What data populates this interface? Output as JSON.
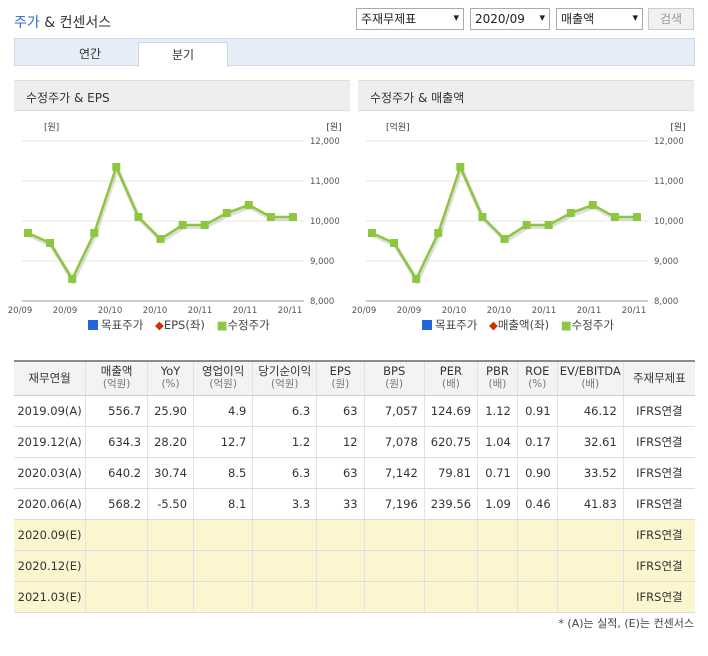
{
  "header": {
    "title_prefix": "주가",
    "title_rest": " & 컨센서스",
    "select_type": "주재무제표",
    "select_period": "2020/09",
    "select_metric": "매출액",
    "search_label": "검색"
  },
  "tabs": [
    "연간",
    "분기"
  ],
  "charts": [
    {
      "title": "수정주가 & EPS",
      "y_left_unit": "[원]",
      "y_right_unit": "[원]",
      "legend": [
        "목표주가",
        "EPS(좌)",
        "수정주가"
      ]
    },
    {
      "title": "수정주가 & 매출액",
      "y_left_unit": "[억원]",
      "y_right_unit": "[원]",
      "legend": [
        "목표주가",
        "매출액(좌)",
        "수정주가"
      ]
    }
  ],
  "chart_data": [
    {
      "type": "line",
      "title": "수정주가 & EPS",
      "x_ticks": [
        "20/09",
        "20/09",
        "20/10",
        "20/10",
        "20/11",
        "20/11",
        "20/11"
      ],
      "y_right_ticks": [
        "12,000",
        "11,000",
        "10,000",
        "9,000",
        "8,000"
      ],
      "ylim": [
        8000,
        12000
      ],
      "series": [
        {
          "name": "수정주가",
          "values": [
            9700,
            9450,
            8550,
            9700,
            11350,
            10100,
            9550,
            9900,
            9900,
            10200,
            10400,
            10100,
            10100
          ]
        }
      ]
    },
    {
      "type": "line",
      "title": "수정주가 & 매출액",
      "x_ticks": [
        "20/09",
        "20/09",
        "20/10",
        "20/10",
        "20/11",
        "20/11",
        "20/11"
      ],
      "y_right_ticks": [
        "12,000",
        "11,000",
        "10,000",
        "9,000",
        "8,000"
      ],
      "ylim": [
        8000,
        12000
      ],
      "series": [
        {
          "name": "수정주가",
          "values": [
            9700,
            9450,
            8550,
            9700,
            11350,
            10100,
            9550,
            9900,
            9900,
            10200,
            10400,
            10100,
            10100
          ]
        }
      ]
    }
  ],
  "colors": {
    "target": "#2266dd",
    "eps": "#cc3300",
    "price": "#8dc63f"
  },
  "table": {
    "headers": [
      [
        "재무연월",
        ""
      ],
      [
        "매출액",
        "(억원)"
      ],
      [
        "YoY",
        "(%)"
      ],
      [
        "영업이익",
        "(억원)"
      ],
      [
        "당기순이익",
        "(억원)"
      ],
      [
        "EPS",
        "(원)"
      ],
      [
        "BPS",
        "(원)"
      ],
      [
        "PER",
        "(배)"
      ],
      [
        "PBR",
        "(배)"
      ],
      [
        "ROE",
        "(%)"
      ],
      [
        "EV/EBITDA",
        "(배)"
      ],
      [
        "주재무제표",
        ""
      ]
    ],
    "rows": [
      [
        "2019.09(A)",
        "556.7",
        "25.90",
        "4.9",
        "6.3",
        "63",
        "7,057",
        "124.69",
        "1.12",
        "0.91",
        "46.12",
        "IFRS연결"
      ],
      [
        "2019.12(A)",
        "634.3",
        "28.20",
        "12.7",
        "1.2",
        "12",
        "7,078",
        "620.75",
        "1.04",
        "0.17",
        "32.61",
        "IFRS연결"
      ],
      [
        "2020.03(A)",
        "640.2",
        "30.74",
        "8.5",
        "6.3",
        "63",
        "7,142",
        "79.81",
        "0.71",
        "0.90",
        "33.52",
        "IFRS연결"
      ],
      [
        "2020.06(A)",
        "568.2",
        "-5.50",
        "8.1",
        "3.3",
        "33",
        "7,196",
        "239.56",
        "1.09",
        "0.46",
        "41.83",
        "IFRS연결"
      ],
      [
        "2020.09(E)",
        "",
        "",
        "",
        "",
        "",
        "",
        "",
        "",
        "",
        "",
        "IFRS연결"
      ],
      [
        "2020.12(E)",
        "",
        "",
        "",
        "",
        "",
        "",
        "",
        "",
        "",
        "",
        "IFRS연결"
      ],
      [
        "2021.03(E)",
        "",
        "",
        "",
        "",
        "",
        "",
        "",
        "",
        "",
        "",
        "IFRS연결"
      ]
    ]
  },
  "footnote": "* (A)는 실적, (E)는 컨센서스"
}
